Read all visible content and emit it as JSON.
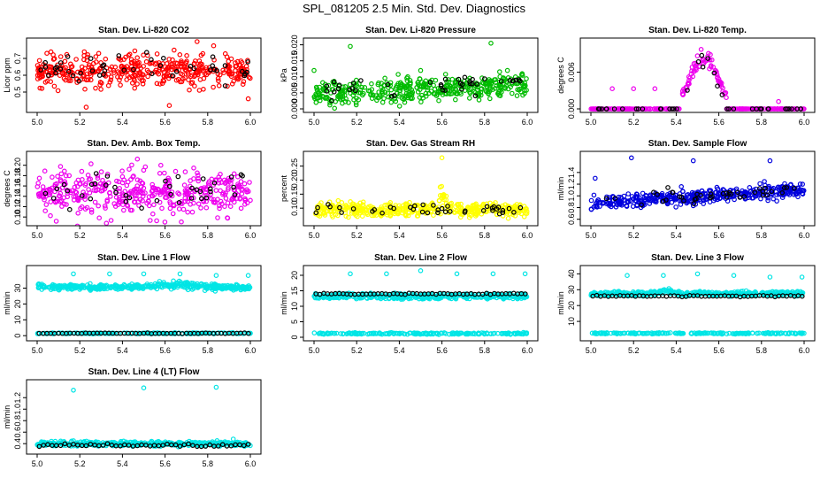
{
  "figure_title": "SPL_081205  2.5 Min. Std. Dev. Diagnostics",
  "chart_data": [
    {
      "id": "co2",
      "type": "scatter",
      "title": "Stan. Dev. Li-820 CO2",
      "ylabel": "Licor ppm",
      "xlim": [
        5.0,
        6.0
      ],
      "ylim": [
        0.4,
        0.8
      ],
      "xticks": [
        "5.0",
        "5.2",
        "5.4",
        "5.6",
        "5.8",
        "6.0"
      ],
      "yticks": [
        {
          "v": 0.5,
          "label": "0.5"
        },
        {
          "v": 0.6,
          "label": "0.6"
        },
        {
          "v": 0.7,
          "label": "0.7"
        }
      ],
      "series": [
        {
          "name": "all",
          "color": "#ff0000",
          "n": 420,
          "base": 0.63,
          "spread": 0.07
        },
        {
          "name": "black",
          "color": "#000000",
          "n": 45,
          "base": 0.63,
          "spread": 0.06
        }
      ],
      "outliers": [
        {
          "x": 5.23,
          "y": 0.41
        },
        {
          "x": 5.62,
          "y": 0.42
        },
        {
          "x": 5.75,
          "y": 0.8
        },
        {
          "x": 5.99,
          "y": 0.46
        }
      ]
    },
    {
      "id": "pressure",
      "type": "scatter",
      "title": "Stan. Dev. Li-820 Pressure",
      "ylabel": "kPa",
      "xlim": [
        5.0,
        6.0
      ],
      "ylim": [
        0.0,
        0.021
      ],
      "xticks": [
        "5.0",
        "5.2",
        "5.4",
        "5.6",
        "5.8",
        "6.0"
      ],
      "yticks": [
        {
          "v": 0.0,
          "label": "0.000"
        },
        {
          "v": 0.005,
          "label": "0.005"
        },
        {
          "v": 0.01,
          "label": "0.010"
        },
        {
          "v": 0.015,
          "label": "0.015"
        },
        {
          "v": 0.02,
          "label": "0.020"
        }
      ],
      "series": [
        {
          "name": "all",
          "color": "#00bb00",
          "n": 420,
          "base": 0.0045,
          "spread": 0.0025,
          "trend": 0.003
        },
        {
          "name": "black",
          "color": "#000000",
          "n": 40,
          "base": 0.005,
          "spread": 0.0022,
          "trend": 0.003
        }
      ],
      "outliers": [
        {
          "x": 5.0,
          "y": 0.012
        },
        {
          "x": 5.17,
          "y": 0.0195
        },
        {
          "x": 5.83,
          "y": 0.0205
        },
        {
          "x": 5.5,
          "y": 0.012
        }
      ]
    },
    {
      "id": "temp",
      "type": "scatter",
      "title": "Stan. Dev. Li-820 Temp.",
      "ylabel": "degrees C",
      "xlim": [
        5.0,
        6.0
      ],
      "ylim": [
        0.0,
        0.011
      ],
      "xticks": [
        "5.0",
        "5.2",
        "5.4",
        "5.6",
        "5.8",
        "6.0"
      ],
      "yticks": [
        {
          "v": 0.0,
          "label": "0.000"
        },
        {
          "v": 0.006,
          "label": "0.006"
        }
      ],
      "series": [
        {
          "name": "all",
          "color": "#ee00ee",
          "n": 300,
          "base": 0.0,
          "spread": 0.0,
          "bump": {
            "center": 5.53,
            "width": 0.09,
            "height": 0.0095
          }
        },
        {
          "name": "black",
          "color": "#000000",
          "n": 40,
          "base": 0.0,
          "spread": 0.0,
          "bump": {
            "center": 5.53,
            "width": 0.08,
            "height": 0.009
          }
        }
      ],
      "outliers": [
        {
          "x": 5.1,
          "y": 0.0033
        },
        {
          "x": 5.2,
          "y": 0.0033
        },
        {
          "x": 5.3,
          "y": 0.0033
        },
        {
          "x": 5.88,
          "y": 0.0012
        }
      ]
    },
    {
      "id": "ambbox",
      "type": "scatter",
      "title": "Stan. Dev. Amb. Box Temp.",
      "ylabel": "degrees C",
      "xlim": [
        5.0,
        6.0
      ],
      "ylim": [
        0.09,
        0.22
      ],
      "xticks": [
        "5.0",
        "5.2",
        "5.4",
        "5.6",
        "5.8",
        "6.0"
      ],
      "yticks": [
        {
          "v": 0.1,
          "label": "0.10"
        },
        {
          "v": 0.12,
          "label": "0.12"
        },
        {
          "v": 0.14,
          "label": "0.14"
        },
        {
          "v": 0.16,
          "label": "0.16"
        },
        {
          "v": 0.18,
          "label": "0.18"
        },
        {
          "v": 0.2,
          "label": "0.20"
        }
      ],
      "series": [
        {
          "name": "all",
          "color": "#ee00ee",
          "n": 420,
          "base": 0.145,
          "spread": 0.03
        },
        {
          "name": "black",
          "color": "#000000",
          "n": 40,
          "base": 0.145,
          "spread": 0.025
        }
      ],
      "outliers": [
        {
          "x": 5.47,
          "y": 0.212
        },
        {
          "x": 5.58,
          "y": 0.2
        }
      ]
    },
    {
      "id": "rh",
      "type": "scatter",
      "title": "Stan. Dev. Gas Stream RH",
      "ylabel": "percent",
      "xlim": [
        5.0,
        6.0
      ],
      "ylim": [
        0.05,
        0.29
      ],
      "xticks": [
        "5.0",
        "5.2",
        "5.4",
        "5.6",
        "5.8",
        "6.0"
      ],
      "yticks": [
        {
          "v": 0.1,
          "label": "0.10"
        },
        {
          "v": 0.15,
          "label": "0.15"
        },
        {
          "v": 0.2,
          "label": "0.20"
        },
        {
          "v": 0.25,
          "label": "0.25"
        }
      ],
      "series": [
        {
          "name": "all",
          "color": "#ffff00",
          "n": 420,
          "base": 0.095,
          "spread": 0.017,
          "bump": {
            "center": 5.6,
            "width": 0.02,
            "height": 0.09
          }
        },
        {
          "name": "black",
          "color": "#000000",
          "n": 40,
          "base": 0.095,
          "spread": 0.015
        }
      ],
      "outliers": [
        {
          "x": 5.6,
          "y": 0.28
        },
        {
          "x": 5.13,
          "y": 0.12
        },
        {
          "x": 5.75,
          "y": 0.09
        }
      ]
    },
    {
      "id": "sample",
      "type": "scatter",
      "title": "Stan. Dev. Sample Flow",
      "ylabel": "ml/min",
      "xlim": [
        5.0,
        6.0
      ],
      "ylim": [
        0.55,
        1.7
      ],
      "xticks": [
        "5.0",
        "5.2",
        "5.4",
        "5.6",
        "5.8",
        "6.0"
      ],
      "yticks": [
        {
          "v": 0.6,
          "label": "0.6"
        },
        {
          "v": 0.8,
          "label": "0.8"
        },
        {
          "v": 1.0,
          "label": "1.0"
        },
        {
          "v": 1.2,
          "label": "1.2"
        },
        {
          "v": 1.4,
          "label": "1.4"
        }
      ],
      "series": [
        {
          "name": "all",
          "color": "#0000dd",
          "n": 420,
          "base": 0.88,
          "spread": 0.09,
          "trend": 0.22
        },
        {
          "name": "black",
          "color": "#000000",
          "n": 40,
          "base": 0.9,
          "spread": 0.08,
          "trend": 0.2
        }
      ],
      "outliers": [
        {
          "x": 5.19,
          "y": 1.65
        },
        {
          "x": 5.48,
          "y": 1.6
        },
        {
          "x": 5.84,
          "y": 1.6
        },
        {
          "x": 5.02,
          "y": 1.3
        }
      ]
    },
    {
      "id": "line1",
      "type": "scatter",
      "title": "Stan. Dev. Line 1 Flow",
      "ylabel": "ml/min",
      "xlim": [
        5.0,
        6.0
      ],
      "ylim": [
        -1,
        42
      ],
      "xticks": [
        "5.0",
        "5.2",
        "5.4",
        "5.6",
        "5.8",
        "6.0"
      ],
      "yticks": [
        {
          "v": 0,
          "label": "0"
        },
        {
          "v": 10,
          "label": "10"
        },
        {
          "v": 20,
          "label": "20"
        },
        {
          "v": 30,
          "label": "30"
        }
      ],
      "series": [
        {
          "name": "all",
          "color": "#00e5e5",
          "n": 420,
          "base": 30.5,
          "spread": 1.2,
          "bump": {
            "center": 5.65,
            "width": 0.15,
            "height": 2.5
          }
        },
        {
          "name": "low",
          "color": "#00e5e5",
          "n": 200,
          "base": 1.5,
          "spread": 0.25
        },
        {
          "name": "black",
          "color": "#000000",
          "n": 55,
          "base": 1.5,
          "spread": 0.15,
          "even": true
        }
      ],
      "outliers": [
        {
          "x": 5.17,
          "y": 39
        },
        {
          "x": 5.34,
          "y": 39
        },
        {
          "x": 5.5,
          "y": 39
        },
        {
          "x": 5.67,
          "y": 39
        },
        {
          "x": 5.84,
          "y": 38
        },
        {
          "x": 5.99,
          "y": 38
        }
      ]
    },
    {
      "id": "line2",
      "type": "scatter",
      "title": "Stan. Dev. Line 2 Flow",
      "ylabel": "ml/min",
      "xlim": [
        5.0,
        6.0
      ],
      "ylim": [
        0,
        22
      ],
      "xticks": [
        "5.0",
        "5.2",
        "5.4",
        "5.6",
        "5.8",
        "6.0"
      ],
      "yticks": [
        {
          "v": 0,
          "label": "0"
        },
        {
          "v": 5,
          "label": "5"
        },
        {
          "v": 10,
          "label": "10"
        },
        {
          "v": 15,
          "label": "15"
        },
        {
          "v": 20,
          "label": "20"
        }
      ],
      "series": [
        {
          "name": "all",
          "color": "#00e5e5",
          "n": 420,
          "base": 13.2,
          "spread": 0.6
        },
        {
          "name": "low",
          "color": "#00e5e5",
          "n": 200,
          "base": 1.2,
          "spread": 0.2
        },
        {
          "name": "black",
          "color": "#000000",
          "n": 55,
          "base": 14.0,
          "spread": 0.15,
          "even": true
        }
      ],
      "outliers": [
        {
          "x": 5.17,
          "y": 20.5
        },
        {
          "x": 5.34,
          "y": 20.5
        },
        {
          "x": 5.5,
          "y": 21.5
        },
        {
          "x": 5.67,
          "y": 20.5
        },
        {
          "x": 5.84,
          "y": 20.5
        },
        {
          "x": 5.99,
          "y": 20.5
        }
      ]
    },
    {
      "id": "line3",
      "type": "scatter",
      "title": "Stan. Dev. Line 3 Flow",
      "ylabel": "ml/min",
      "xlim": [
        5.0,
        6.0
      ],
      "ylim": [
        0,
        43
      ],
      "xticks": [
        "5.0",
        "5.2",
        "5.4",
        "5.6",
        "5.8",
        "6.0"
      ],
      "yticks": [
        {
          "v": 10,
          "label": "10"
        },
        {
          "v": 20,
          "label": "20"
        },
        {
          "v": 30,
          "label": "30"
        },
        {
          "v": 40,
          "label": "40"
        }
      ],
      "series": [
        {
          "name": "all",
          "color": "#00e5e5",
          "n": 420,
          "base": 27.5,
          "spread": 1.0,
          "bump": {
            "center": 5.35,
            "width": 0.05,
            "height": 2.5
          }
        },
        {
          "name": "low",
          "color": "#00e5e5",
          "n": 200,
          "base": 2.5,
          "spread": 0.3
        },
        {
          "name": "black",
          "color": "#000000",
          "n": 55,
          "base": 26.0,
          "spread": 0.3,
          "even": true
        }
      ],
      "outliers": [
        {
          "x": 5.17,
          "y": 39
        },
        {
          "x": 5.34,
          "y": 39
        },
        {
          "x": 5.5,
          "y": 40
        },
        {
          "x": 5.67,
          "y": 39
        },
        {
          "x": 5.84,
          "y": 38
        },
        {
          "x": 5.99,
          "y": 38
        }
      ]
    },
    {
      "id": "line4",
      "type": "scatter",
      "title": "Stan. Dev. Line 4 (LT) Flow",
      "ylabel": "ml/min",
      "xlim": [
        5.0,
        6.0
      ],
      "ylim": [
        0.28,
        1.45
      ],
      "xticks": [
        "5.0",
        "5.2",
        "5.4",
        "5.6",
        "5.8",
        "6.0"
      ],
      "yticks": [
        {
          "v": 0.4,
          "label": "0.4"
        },
        {
          "v": 0.6,
          "label": "0.6"
        },
        {
          "v": 0.8,
          "label": "0.8"
        },
        {
          "v": 1.0,
          "label": "1.0"
        },
        {
          "v": 1.2,
          "label": "1.2"
        }
      ],
      "series": [
        {
          "name": "all",
          "color": "#00e5e5",
          "n": 420,
          "base": 0.4,
          "spread": 0.03
        },
        {
          "name": "black",
          "color": "#000000",
          "n": 50,
          "base": 0.37,
          "spread": 0.02,
          "even": true
        }
      ],
      "outliers": [
        {
          "x": 5.17,
          "y": 1.33
        },
        {
          "x": 5.5,
          "y": 1.37
        },
        {
          "x": 5.84,
          "y": 1.38
        },
        {
          "x": 5.92,
          "y": 0.48
        }
      ]
    }
  ]
}
